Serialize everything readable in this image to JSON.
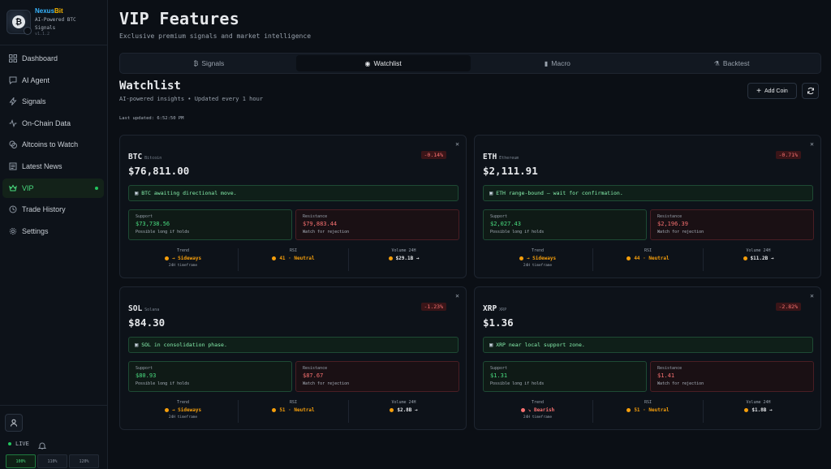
{
  "brand": {
    "name_a": "Nexus",
    "name_b": "Bit",
    "tagline": "AI-Powered BTC Signals",
    "version": "v1.1.2"
  },
  "sidebar": {
    "items": [
      {
        "label": "Dashboard",
        "icon": "grid-icon"
      },
      {
        "label": "AI Agent",
        "icon": "chat-icon"
      },
      {
        "label": "Signals",
        "icon": "bolt-icon"
      },
      {
        "label": "On-Chain Data",
        "icon": "activity-icon"
      },
      {
        "label": "Altcoins to Watch",
        "icon": "coins-icon"
      },
      {
        "label": "Latest News",
        "icon": "newspaper-icon"
      },
      {
        "label": "VIP",
        "icon": "crown-icon",
        "active": true
      },
      {
        "label": "Trade History",
        "icon": "history-icon"
      },
      {
        "label": "Settings",
        "icon": "gear-icon"
      }
    ],
    "live_label": "LIVE",
    "zoom": [
      "100%",
      "110%",
      "120%"
    ]
  },
  "page": {
    "title": "VIP Features",
    "subtitle": "Exclusive premium signals and market intelligence"
  },
  "tabs": [
    {
      "label": "Signals",
      "icon": "₿"
    },
    {
      "label": "Watchlist",
      "icon": "◉",
      "active": true
    },
    {
      "label": "Macro",
      "icon": "▮"
    },
    {
      "label": "Backtest",
      "icon": "⚗"
    }
  ],
  "watchlist": {
    "title": "Watchlist",
    "subtitle": "AI-powered insights • Updated every 1 hour",
    "last_updated": "Last updated: 6:52:50 PM",
    "add_label": "Add Coin"
  },
  "labels": {
    "support": "Support",
    "resistance": "Resistance",
    "trend": "Trend",
    "rsi": "RSI",
    "volume": "Volume 24H"
  },
  "cards": [
    {
      "symbol": "BTC",
      "name": "Bitcoin",
      "price": "$76,811.00",
      "change": "-0.14%",
      "note": "BTC awaiting directional move.",
      "support": "$73,738.56",
      "support_hint": "Possible long if holds",
      "resistance": "$79,883.44",
      "resistance_hint": "Watch for rejection",
      "trend": "→ Sideways",
      "trend_sub": "24H timeframe",
      "rsi": "41 · Neutral",
      "volume": "$29.1B →"
    },
    {
      "symbol": "ETH",
      "name": "Ethereum",
      "price": "$2,111.91",
      "change": "-0.71%",
      "note": "ETH range-bound — wait for confirmation.",
      "support": "$2,027.43",
      "support_hint": "Possible long if holds",
      "resistance": "$2,196.39",
      "resistance_hint": "Watch for rejection",
      "trend": "→ Sideways",
      "trend_sub": "24H timeframe",
      "rsi": "44 · Neutral",
      "volume": "$11.2B →"
    },
    {
      "symbol": "SOL",
      "name": "Solana",
      "price": "$84.30",
      "change": "-1.23%",
      "note": "SOL in consolidation phase.",
      "support": "$80.93",
      "support_hint": "Possible long if holds",
      "resistance": "$87.67",
      "resistance_hint": "Watch for rejection",
      "trend": "→ Sideways",
      "trend_sub": "24H timeframe",
      "rsi": "51 · Neutral",
      "volume": "$2.8B →"
    },
    {
      "symbol": "XRP",
      "name": "XRP",
      "price": "$1.36",
      "change": "-2.82%",
      "note": "XRP near local support zone.",
      "support": "$1.31",
      "support_hint": "Possible long if holds",
      "resistance": "$1.41",
      "resistance_hint": "Watch for rejection",
      "trend": "↘ Bearish",
      "trend_sub": "24H timeframe",
      "trend_color": "#f87171",
      "rsi": "51 · Neutral",
      "volume": "$1.8B →"
    }
  ]
}
